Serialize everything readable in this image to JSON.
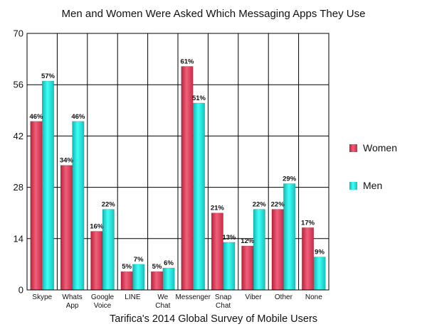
{
  "chart_data": {
    "type": "bar",
    "title": "Men and Women Were Asked Which Messaging Apps They Use",
    "xlabel": "Tarifica's 2014 Global Survey of Mobile Users",
    "ylabel": "",
    "ylim": [
      0,
      70
    ],
    "yticks": [
      "0",
      "14",
      "28",
      "42",
      "56",
      "70"
    ],
    "grid": true,
    "legend_position": "right",
    "categories": [
      [
        "Skype"
      ],
      [
        "Whats",
        "App"
      ],
      [
        "Google",
        "Voice"
      ],
      [
        "LINE"
      ],
      [
        "We",
        "Chat"
      ],
      [
        "Messenger"
      ],
      [
        "Snap",
        "Chat"
      ],
      [
        "Viber"
      ],
      [
        "Other"
      ],
      [
        "None"
      ]
    ],
    "series": [
      {
        "name": "Women",
        "color": "#e04860",
        "values": [
          46,
          34,
          16,
          5,
          5,
          61,
          21,
          12,
          22,
          17
        ],
        "labels": [
          "46%",
          "34%",
          "16%",
          "5%",
          "5%",
          "61%",
          "21%",
          "12%",
          "22%",
          "17%"
        ]
      },
      {
        "name": "Men",
        "color": "#22e0d8",
        "values": [
          57,
          46,
          22,
          7,
          6,
          51,
          13,
          22,
          29,
          9
        ],
        "labels": [
          "57%",
          "46%",
          "22%",
          "7%",
          "6%",
          "51%",
          "13%",
          "22%",
          "29%",
          "9%"
        ]
      }
    ]
  }
}
